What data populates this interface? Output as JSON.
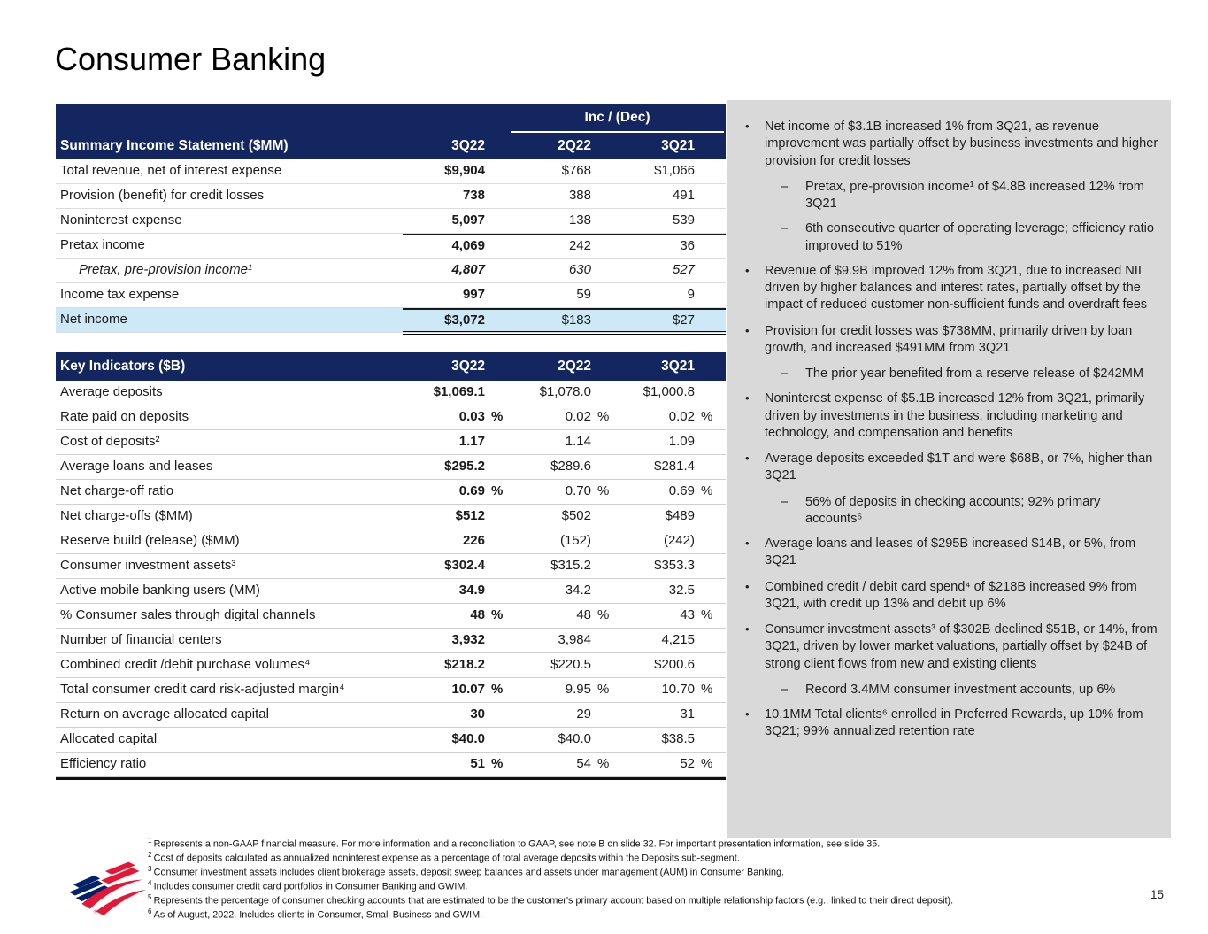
{
  "page_title": "Consumer Banking",
  "page_number": "15",
  "colors": {
    "header_navy": "#13265F",
    "net_income_highlight": "#CDE8F6",
    "sidebar_gray": "#D9D9D9",
    "logo_red": "#E31837",
    "logo_blue": "#012169"
  },
  "summary_table": {
    "title": "Summary Income Statement ($MM)",
    "inc_dec_label": "Inc / (Dec)",
    "columns": [
      "3Q22",
      "2Q22",
      "3Q21"
    ],
    "rows": [
      {
        "label": "Total revenue, net of interest expense",
        "v": [
          "$9,904",
          "$768",
          "$1,066"
        ]
      },
      {
        "label": "Provision (benefit) for credit losses",
        "v": [
          "738",
          "388",
          "491"
        ]
      },
      {
        "label": "Noninterest expense",
        "v": [
          "5,097",
          "138",
          "539"
        ]
      },
      {
        "label": "Pretax income",
        "v": [
          "4,069",
          "242",
          "36"
        ],
        "top_line": true
      },
      {
        "label": "Pretax, pre-provision income¹",
        "v": [
          "4,807",
          "630",
          "527"
        ],
        "italic": true,
        "indent": true
      },
      {
        "label": "Income tax expense",
        "v": [
          "997",
          "59",
          "9"
        ]
      },
      {
        "label": "Net income",
        "v": [
          "$3,072",
          "$183",
          "$27"
        ],
        "top_line": true,
        "double_bottom": true,
        "highlight": true
      }
    ]
  },
  "key_table": {
    "title": "Key Indicators ($B)",
    "columns": [
      "3Q22",
      "2Q22",
      "3Q21"
    ],
    "rows": [
      {
        "label": "Average deposits",
        "v": [
          "$1,069.1",
          "$1,078.0",
          "$1,000.8"
        ]
      },
      {
        "label": "Rate paid on deposits",
        "v": [
          "0.03",
          "0.02",
          "0.02"
        ],
        "pct": true
      },
      {
        "label": "Cost of deposits²",
        "v": [
          "1.17",
          "1.14",
          "1.09"
        ]
      },
      {
        "label": "Average loans and leases",
        "v": [
          "$295.2",
          "$289.6",
          "$281.4"
        ]
      },
      {
        "label": "Net charge-off ratio",
        "v": [
          "0.69",
          "0.70",
          "0.69"
        ],
        "pct": true
      },
      {
        "label": "Net charge-offs ($MM)",
        "v": [
          "$512",
          "$502",
          "$489"
        ]
      },
      {
        "label": "Reserve build (release) ($MM)",
        "v": [
          "226",
          "(152)",
          "(242)"
        ]
      },
      {
        "label": "Consumer investment assets³",
        "v": [
          "$302.4",
          "$315.2",
          "$353.3"
        ]
      },
      {
        "label": "Active mobile banking users (MM)",
        "v": [
          "34.9",
          "34.2",
          "32.5"
        ]
      },
      {
        "label": "% Consumer sales through digital channels",
        "v": [
          "48",
          "48",
          "43"
        ],
        "pct": true
      },
      {
        "label": "Number of financial centers",
        "v": [
          "3,932",
          "3,984",
          "4,215"
        ]
      },
      {
        "label": "Combined credit /debit purchase volumes⁴",
        "v": [
          "$218.2",
          "$220.5",
          "$200.6"
        ]
      },
      {
        "label": "Total consumer credit card risk-adjusted margin⁴",
        "v": [
          "10.07",
          "9.95",
          "10.70"
        ],
        "pct": true
      },
      {
        "label": "Return on average allocated capital",
        "v": [
          "30",
          "29",
          "31"
        ]
      },
      {
        "label": "Allocated capital",
        "v": [
          "$40.0",
          "$40.0",
          "$38.5"
        ]
      },
      {
        "label": "Efficiency ratio",
        "v": [
          "51",
          "54",
          "52"
        ],
        "pct": true
      }
    ]
  },
  "sidebar": {
    "bullets": [
      {
        "text": "Net income of $3.1B increased 1% from 3Q21, as revenue improvement was partially offset by business investments and higher provision for credit losses",
        "subs": [
          "Pretax, pre-provision income¹ of $4.8B increased 12% from 3Q21",
          "6th consecutive quarter of operating leverage; efficiency ratio improved to 51%"
        ]
      },
      {
        "text": "Revenue of $9.9B improved 12% from 3Q21, due to increased NII driven by higher balances and interest rates, partially offset by the impact of reduced customer non-sufficient funds and overdraft fees",
        "subs": []
      },
      {
        "text": "Provision for credit losses was $738MM, primarily driven by loan growth, and increased $491MM from 3Q21",
        "subs": [
          "The prior year benefited from a reserve release of $242MM"
        ]
      },
      {
        "text": "Noninterest expense of $5.1B increased 12% from 3Q21, primarily driven by investments in the business, including marketing and technology, and compensation and benefits",
        "subs": []
      },
      {
        "text": "Average deposits exceeded $1T and were $68B, or 7%, higher than 3Q21",
        "subs": [
          "56% of deposits in checking accounts; 92% primary accounts⁵"
        ]
      },
      {
        "text": "Average loans and leases of $295B increased $14B, or 5%, from 3Q21",
        "subs": []
      },
      {
        "text": "Combined credit / debit card spend⁴ of $218B increased 9% from 3Q21, with credit up 13% and debit up 6%",
        "subs": []
      },
      {
        "text": "Consumer investment assets³ of $302B declined $51B, or 14%, from 3Q21, driven by lower market valuations, partially offset by $24B of strong client flows from new and existing clients",
        "subs": [
          "Record 3.4MM consumer investment accounts, up 6%"
        ]
      },
      {
        "text": "10.1MM Total clients⁶ enrolled in Preferred Rewards, up 10% from 3Q21; 99% annualized retention rate",
        "subs": []
      }
    ]
  },
  "footnotes": [
    {
      "sup": "1",
      "text": "Represents a non-GAAP financial measure. For more information and a reconciliation to GAAP, see note B on slide 32. For important presentation information, see slide 35."
    },
    {
      "sup": "2",
      "text": "Cost of deposits calculated as annualized noninterest expense as a percentage of total average deposits within the Deposits sub-segment."
    },
    {
      "sup": "3",
      "text": "Consumer investment assets includes client brokerage assets, deposit sweep balances and assets under management (AUM) in Consumer Banking."
    },
    {
      "sup": "4",
      "text": "Includes consumer credit card portfolios in Consumer Banking and GWIM."
    },
    {
      "sup": "5",
      "text": "Represents the percentage of consumer checking accounts that are estimated to be the customer's primary account based on multiple relationship factors (e.g., linked to their direct deposit)."
    },
    {
      "sup": "6",
      "text": "As of August, 2022. Includes clients in Consumer, Small Business and GWIM."
    }
  ]
}
